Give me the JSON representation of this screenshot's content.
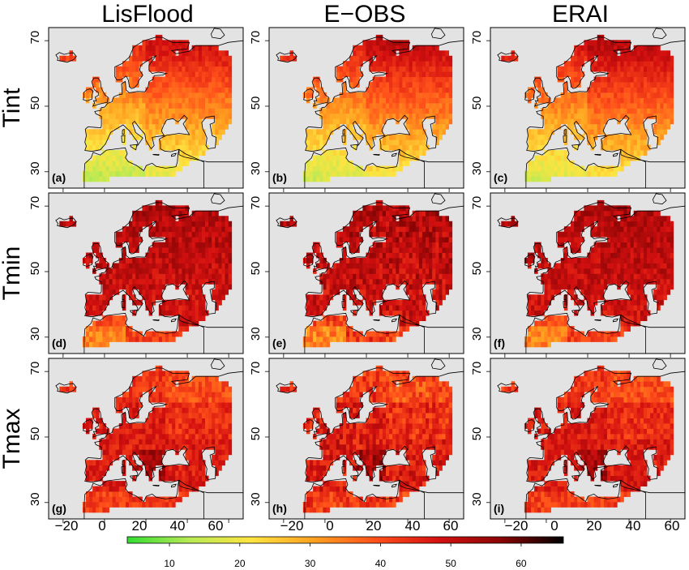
{
  "figure": {
    "columns": [
      "LisFlood",
      "E−OBS",
      "ERAI"
    ],
    "rows": [
      "Tint",
      "Tmin",
      "Tmax"
    ],
    "panel_labels": [
      [
        "(a)",
        "(b)",
        "(c)"
      ],
      [
        "(d)",
        "(e)",
        "(f)"
      ],
      [
        "(g)",
        "(h)",
        "(i)"
      ]
    ],
    "y_ticks": [
      "30",
      "50",
      "70"
    ],
    "x_ticks": [
      "−20",
      "0",
      "20",
      "40",
      "60"
    ],
    "colorbar": {
      "ticks": [
        "10",
        "20",
        "30",
        "40",
        "50",
        "60"
      ],
      "range": [
        4,
        66
      ],
      "colors": [
        "#33dd33",
        "#b8ea55",
        "#ffe440",
        "#ffa020",
        "#ff4f1a",
        "#d41010",
        "#8a0505",
        "#000000"
      ]
    },
    "map_extent": {
      "lon": [
        -27,
        67
      ],
      "lat": [
        25,
        74
      ]
    },
    "background_color": "#e3e3e3"
  }
}
